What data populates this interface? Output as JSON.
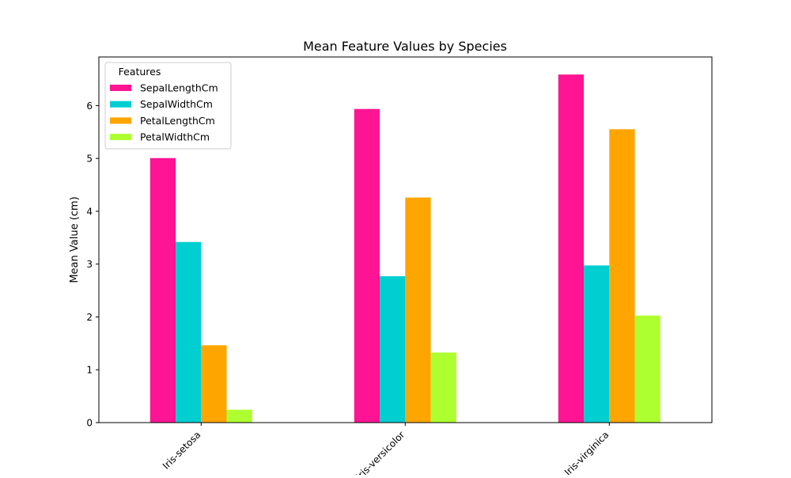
{
  "chart_data": {
    "type": "bar",
    "title": "Mean Feature Values by Species",
    "xlabel": "",
    "ylabel": "Mean Value (cm)",
    "ylim": [
      0,
      6.92
    ],
    "yticks": [
      0,
      1,
      2,
      3,
      4,
      5,
      6
    ],
    "categories": [
      "Iris-setosa",
      "Iris-versicolor",
      "Iris-virginica"
    ],
    "series": [
      {
        "name": "SepalLengthCm",
        "color": "#ff1493",
        "values": [
          5.006,
          5.936,
          6.588
        ]
      },
      {
        "name": "SepalWidthCm",
        "color": "#00ced1",
        "values": [
          3.418,
          2.77,
          2.974
        ]
      },
      {
        "name": "PetalLengthCm",
        "color": "#ffa500",
        "values": [
          1.464,
          4.26,
          5.552
        ]
      },
      {
        "name": "PetalWidthCm",
        "color": "#adff2f",
        "values": [
          0.244,
          1.326,
          2.026
        ]
      }
    ],
    "legend": {
      "title": "Features",
      "placement": "top-left"
    },
    "grid": false,
    "xtick_rotation": "45"
  }
}
